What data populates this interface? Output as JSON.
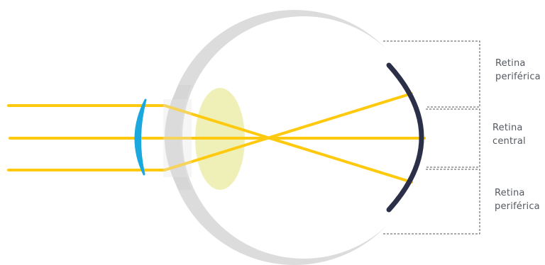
{
  "labels": {
    "top": {
      "line1": "Retina",
      "line2": "periférica"
    },
    "middle": {
      "line1": "Retina",
      "line2": "central"
    },
    "bottom": {
      "line1": "Retina",
      "line2": "periférica"
    }
  },
  "colors": {
    "eyeball": "#dcdcdc",
    "eyeball_inner": "#ffffff",
    "cornea": "#d6d6d6",
    "lens": "#eef0b8",
    "light_rays": "#ffc90e",
    "contact_lens": "#1aa8de",
    "retina": "#2b3048",
    "dashed_lines": "#555555",
    "label_text": "#555a60"
  }
}
